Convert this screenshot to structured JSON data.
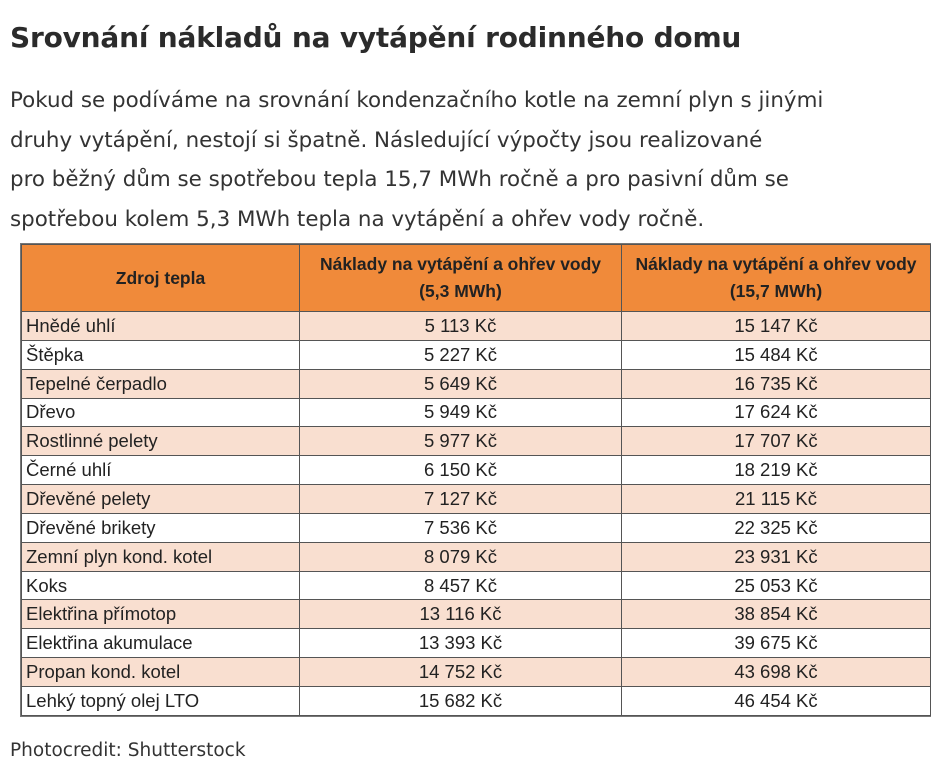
{
  "title": "Srovnání nákladů na vytápění rodinného domu",
  "intro_lines": [
    "Pokud se podíváme na srovnání kondenzačního kotle na zemní plyn s jinými",
    "druhy vytápění, nestojí si špatně. Následující výpočty jsou realizované",
    "pro běžný dům se spotřebou tepla 15,7 MWh ročně a pro pasivní dům se",
    "spotřebou kolem 5,3 MWh tepla na vytápění a ohřev vody ročně."
  ],
  "table": {
    "header_color": "#f08a3a",
    "stripe_color": "#f9dfd0",
    "headers": [
      "Zdroj tepla",
      "Náklady na vytápění a ohřev vody (5,3 MWh)",
      "Náklady na vytápění a ohřev vody (15,7 MWh)"
    ],
    "rows": [
      {
        "source": "Hnědé uhlí",
        "cost_5_3": "5 113 Kč",
        "cost_15_7": "15 147 Kč"
      },
      {
        "source": "Štěpka",
        "cost_5_3": "5 227 Kč",
        "cost_15_7": "15 484 Kč"
      },
      {
        "source": "Tepelné čerpadlo",
        "cost_5_3": "5 649 Kč",
        "cost_15_7": "16 735 Kč"
      },
      {
        "source": "Dřevo",
        "cost_5_3": "5 949 Kč",
        "cost_15_7": "17 624 Kč"
      },
      {
        "source": "Rostlinné pelety",
        "cost_5_3": "5 977 Kč",
        "cost_15_7": "17 707 Kč"
      },
      {
        "source": "Černé uhlí",
        "cost_5_3": "6 150 Kč",
        "cost_15_7": "18 219 Kč"
      },
      {
        "source": "Dřevěné pelety",
        "cost_5_3": "7 127 Kč",
        "cost_15_7": "21 115 Kč"
      },
      {
        "source": "Dřevěné brikety",
        "cost_5_3": "7 536 Kč",
        "cost_15_7": "22 325 Kč"
      },
      {
        "source": "Zemní plyn kond. kotel",
        "cost_5_3": "8 079 Kč",
        "cost_15_7": "23 931 Kč"
      },
      {
        "source": "Koks",
        "cost_5_3": "8 457 Kč",
        "cost_15_7": "25 053 Kč"
      },
      {
        "source": "Elektřina přímotop",
        "cost_5_3": "13 116 Kč",
        "cost_15_7": "38 854 Kč"
      },
      {
        "source": "Elektřina akumulace",
        "cost_5_3": "13 393 Kč",
        "cost_15_7": "39 675 Kč"
      },
      {
        "source": "Propan kond. kotel",
        "cost_5_3": "14 752 Kč",
        "cost_15_7": "43 698 Kč"
      },
      {
        "source": "Lehký topný olej LTO",
        "cost_5_3": "15 682 Kč",
        "cost_15_7": "46 454 Kč"
      }
    ]
  },
  "credit": "Photocredit: Shutterstock"
}
